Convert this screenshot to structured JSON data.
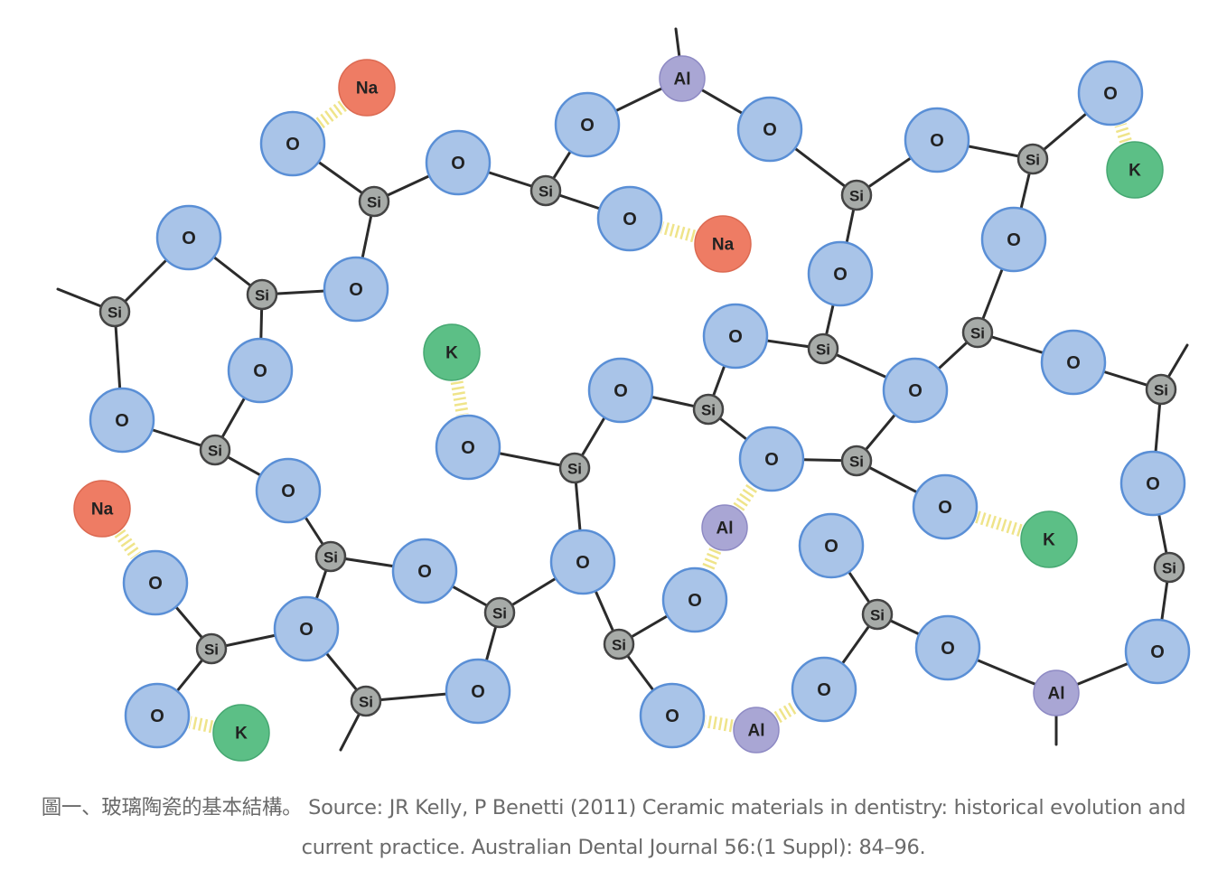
{
  "colors": {
    "oxygen_fill": "#a9c4e8",
    "oxygen_stroke": "#5a8fd6",
    "silicon_fill": "#a7aba8",
    "silicon_stroke": "#444444",
    "sodium_fill": "#ee7c64",
    "potassium_fill": "#5cbf86",
    "aluminum_fill": "#a9a6d4",
    "ionic_bond": "#efe48a",
    "caption_text": "#6a6a6a"
  },
  "atoms": {
    "O": "O",
    "Si": "Si",
    "Al": "Al",
    "Na": "Na",
    "K": "K"
  },
  "caption": {
    "text": "圖一、玻璃陶瓷的基本結構。 Source: JR Kelly, P Benetti (2011) Ceramic materials in dentistry: historical evolution and current practice. Australian Dental Journal 56:(1 Suppl): 84–96."
  }
}
